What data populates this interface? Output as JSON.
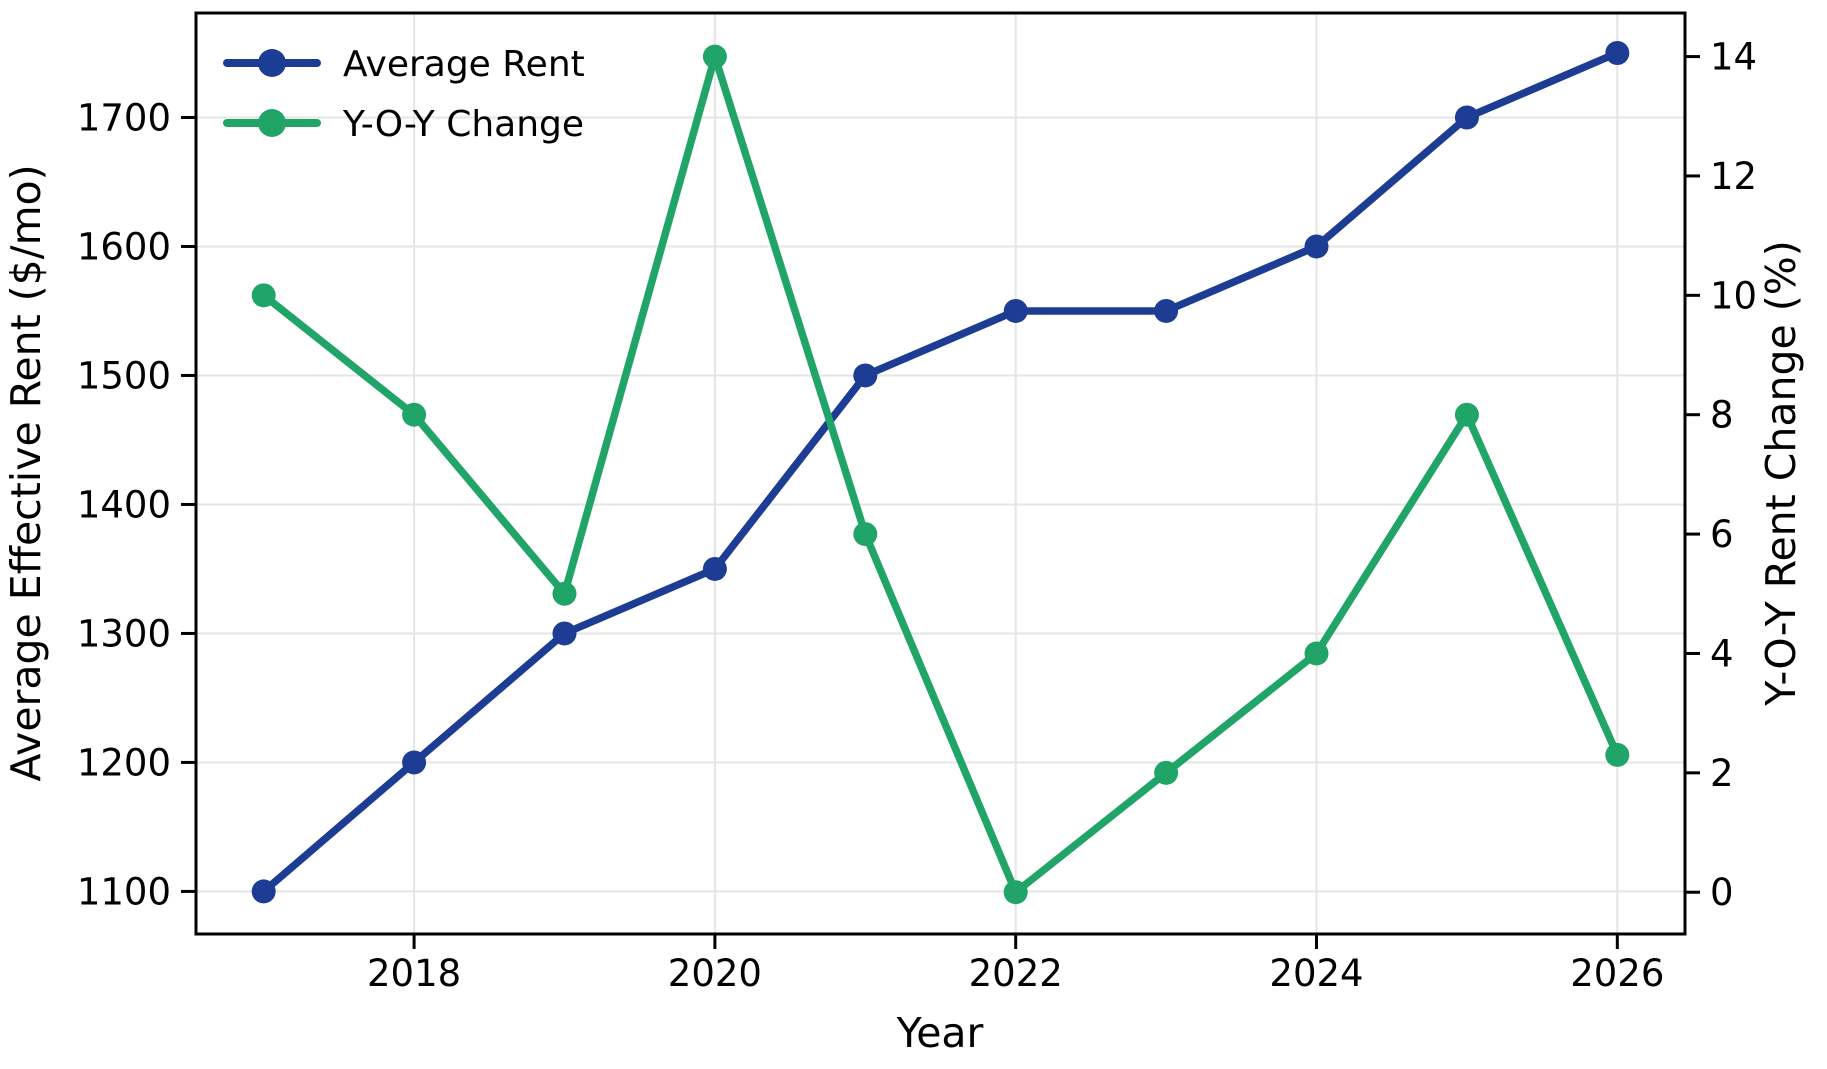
{
  "figure": {
    "background": "#ffffff",
    "axis_color": "#000000",
    "grid_color": "#e5e5e5",
    "spine_width": 3,
    "tick_length": 15
  },
  "chart_data": {
    "type": "line",
    "x": [
      2017,
      2018,
      2019,
      2020,
      2021,
      2022,
      2023,
      2024,
      2025,
      2026
    ],
    "series": [
      {
        "name": "Average Rent",
        "yaxis": "left",
        "color": "#1d3c94",
        "values": [
          1100,
          1200,
          1300,
          1350,
          1500,
          1550,
          1550,
          1600,
          1700,
          1750
        ]
      },
      {
        "name": "Y-O-Y Change",
        "yaxis": "right",
        "color": "#20a468",
        "values": [
          10,
          8,
          5,
          14,
          6,
          0,
          2,
          4,
          8,
          2.3
        ]
      }
    ],
    "xlabel": "Year",
    "ylabel_left": "Average Effective Rent ($/mo)",
    "ylabel_right": "Y-O-Y Rent Change (%)",
    "xticks": [
      2018,
      2020,
      2022,
      2024,
      2026
    ],
    "yticks_left": [
      1100,
      1200,
      1300,
      1400,
      1500,
      1600,
      1700
    ],
    "yticks_right": [
      0,
      2,
      4,
      6,
      8,
      10,
      12,
      14
    ],
    "xlim": [
      2016.55,
      2026.45
    ],
    "ylim_left": [
      1067,
      1781
    ],
    "ylim_right": [
      -0.7,
      14.73
    ],
    "grid": true,
    "legend_position": "upper-left"
  }
}
